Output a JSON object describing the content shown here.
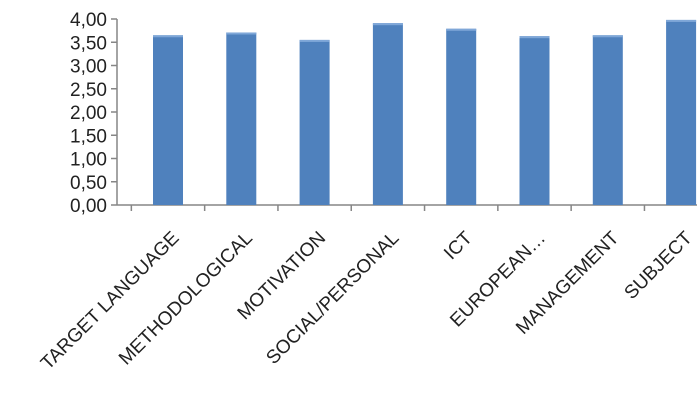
{
  "chart_data": {
    "type": "bar",
    "title": "",
    "xlabel": "",
    "ylabel": "",
    "categories": [
      "TARGET LANGUAGE",
      "METHODOLOGICAL",
      "MOTIVATION",
      "SOCIAL/PERSONAL",
      "ICT",
      "EUROPEAN…",
      "MANAGEMENT",
      "SUBJECT"
    ],
    "values": [
      3.65,
      3.71,
      3.55,
      3.91,
      3.79,
      3.63,
      3.65,
      3.98
    ],
    "ylim": [
      0,
      4
    ],
    "y_ticks": [
      "0,00",
      "0,50",
      "1,00",
      "1,50",
      "2,00",
      "2,50",
      "3,00",
      "3,50",
      "4,00"
    ],
    "y_tick_values": [
      0,
      0.5,
      1,
      1.5,
      2,
      2.5,
      3,
      3.5,
      4
    ],
    "grid": false,
    "legend": "none",
    "colors": {
      "bar": "#4F81BD",
      "bar_top": "#7FA7D8",
      "axis": "#868686",
      "text": "#222222"
    }
  }
}
